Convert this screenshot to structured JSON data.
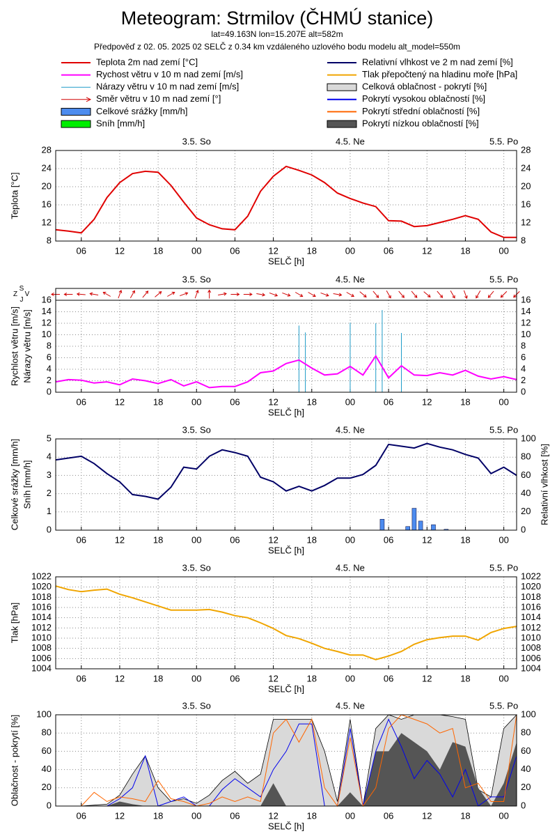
{
  "title": "Meteogram: Strmilov (ČHMÚ stanice)",
  "subtitle": "lat=49.163N lon=15.207E alt=582m",
  "forecast_info": "Předpověď z 02. 05. 2025 02 SELČ z 0.34 km vzdáleného uzlového bodu modelu alt_model=550m",
  "chart_data": [
    {
      "type": "line",
      "ylabel": "Teplota [°C]",
      "xlabel": "SELČ [h]",
      "x": [
        2,
        4,
        6,
        8,
        10,
        12,
        14,
        16,
        18,
        20,
        22,
        24,
        26,
        28,
        30,
        32,
        34,
        36,
        38,
        40,
        42,
        44,
        46,
        48,
        50,
        52,
        54,
        56,
        58,
        60,
        62,
        64,
        66,
        68,
        70,
        72,
        74
      ],
      "xlim": [
        2,
        74
      ],
      "xticks": [
        {
          "value": 6,
          "label": "06"
        },
        {
          "value": 12,
          "label": "12"
        },
        {
          "value": 18,
          "label": "18"
        },
        {
          "value": 24,
          "label": "00"
        },
        {
          "value": 30,
          "label": "06"
        },
        {
          "value": 36,
          "label": "12"
        },
        {
          "value": 42,
          "label": "18"
        },
        {
          "value": 48,
          "label": "00"
        },
        {
          "value": 54,
          "label": "06"
        },
        {
          "value": 60,
          "label": "12"
        },
        {
          "value": 66,
          "label": "18"
        },
        {
          "value": 72,
          "label": "00"
        }
      ],
      "top_ticks": [
        {
          "value": 24,
          "label": "3.5. So"
        },
        {
          "value": 48,
          "label": "4.5. Ne"
        },
        {
          "value": 72,
          "label": "5.5. Po"
        }
      ],
      "ylim": [
        8,
        28
      ],
      "yticks": [
        8,
        12,
        16,
        20,
        24,
        28
      ],
      "mirror_yticks": true,
      "grid": true,
      "series": [
        {
          "name": "Teplota 2m nad zemí [°C]",
          "type": "line",
          "color": "#e00000",
          "values": [
            10.5,
            10.2,
            9.8,
            12.8,
            17.6,
            20.9,
            22.9,
            23.4,
            23.2,
            20.3,
            16.6,
            13.1,
            11.6,
            10.7,
            10.5,
            13.5,
            19.0,
            22.3,
            24.5,
            23.6,
            22.6,
            20.9,
            18.6,
            17.4,
            16.4,
            15.6,
            12.5,
            12.4,
            11.2,
            11.4,
            12.1,
            12.8,
            13.6,
            12.8,
            10.0,
            8.8,
            8.8
          ]
        }
      ]
    },
    {
      "type": "line",
      "ylabel": [
        "Rychlost větru [m/s]",
        "Nárazy větru [m/s]"
      ],
      "xlabel": "SELČ [h]",
      "compass": {
        "n": "S",
        "w": "Z",
        "s": "J",
        "e": "V"
      },
      "x": [
        2,
        4,
        6,
        8,
        10,
        12,
        14,
        16,
        18,
        20,
        22,
        24,
        26,
        28,
        30,
        32,
        34,
        36,
        38,
        40,
        42,
        44,
        46,
        48,
        50,
        52,
        54,
        56,
        58,
        60,
        62,
        64,
        66,
        68,
        70,
        72,
        74
      ],
      "xlim": [
        2,
        74
      ],
      "xticks": [
        {
          "value": 6,
          "label": "06"
        },
        {
          "value": 12,
          "label": "12"
        },
        {
          "value": 18,
          "label": "18"
        },
        {
          "value": 24,
          "label": "00"
        },
        {
          "value": 30,
          "label": "06"
        },
        {
          "value": 36,
          "label": "12"
        },
        {
          "value": 42,
          "label": "18"
        },
        {
          "value": 48,
          "label": "00"
        },
        {
          "value": 54,
          "label": "06"
        },
        {
          "value": 60,
          "label": "12"
        },
        {
          "value": 66,
          "label": "18"
        },
        {
          "value": 72,
          "label": "00"
        }
      ],
      "top_ticks": [
        {
          "value": 24,
          "label": "3.5. So"
        },
        {
          "value": 48,
          "label": "4.5. Ne"
        },
        {
          "value": 72,
          "label": "5.5. Po"
        }
      ],
      "ylim": [
        0,
        16
      ],
      "yticks": [
        0,
        2,
        4,
        6,
        8,
        10,
        12,
        14,
        16
      ],
      "mirror_yticks": true,
      "grid": true,
      "series": [
        {
          "name": "Rychost větru v 10 m nad zemí [m/s]",
          "type": "line",
          "color": "#ff00ff",
          "values": [
            1.8,
            2.2,
            2.1,
            1.6,
            1.8,
            1.3,
            2.3,
            2.0,
            1.5,
            2.2,
            1.1,
            1.8,
            0.8,
            1.0,
            1.0,
            1.8,
            3.4,
            3.7,
            5.0,
            5.6,
            4.2,
            3.0,
            3.2,
            4.5,
            3.0,
            6.3,
            2.5,
            4.6,
            3.0,
            2.9,
            3.4,
            3.0,
            3.8,
            2.8,
            2.3,
            2.7,
            2.2
          ]
        },
        {
          "name": "Nárazy větru v 10 m nad zemí [m/s]",
          "type": "impulse",
          "color": "#1e9bc8",
          "x": [
            40,
            41,
            48,
            52,
            53,
            56
          ],
          "values": [
            11.6,
            10.4,
            12.1,
            12.0,
            14.3,
            10.3
          ]
        },
        {
          "name": "Směr větru v 10 m nad zemí [°]",
          "type": "arrow",
          "color": "#d00000",
          "values": [
            90,
            90,
            95,
            100,
            120,
            200,
            210,
            220,
            230,
            240,
            250,
            200,
            180,
            260,
            270,
            270,
            280,
            290,
            290,
            300,
            300,
            290,
            280,
            300,
            310,
            320,
            330,
            320,
            320,
            310,
            320,
            330,
            340,
            30,
            40,
            45,
            45
          ]
        }
      ]
    },
    {
      "type": "bar",
      "ylabel": [
        "Celkové srážky [mm/h]",
        "Sníh [mm/h]"
      ],
      "y2label": "Relativní vlhkost [%]",
      "xlabel": "SELČ [h]",
      "x": [
        2,
        4,
        6,
        8,
        10,
        12,
        14,
        16,
        18,
        20,
        22,
        24,
        26,
        28,
        30,
        32,
        34,
        36,
        38,
        40,
        42,
        44,
        46,
        48,
        50,
        52,
        54,
        56,
        58,
        60,
        62,
        64,
        66,
        68,
        70,
        72,
        74
      ],
      "xlim": [
        2,
        74
      ],
      "xticks": [
        {
          "value": 6,
          "label": "06"
        },
        {
          "value": 12,
          "label": "12"
        },
        {
          "value": 18,
          "label": "18"
        },
        {
          "value": 24,
          "label": "00"
        },
        {
          "value": 30,
          "label": "06"
        },
        {
          "value": 36,
          "label": "12"
        },
        {
          "value": 42,
          "label": "18"
        },
        {
          "value": 48,
          "label": "00"
        },
        {
          "value": 54,
          "label": "06"
        },
        {
          "value": 60,
          "label": "12"
        },
        {
          "value": 66,
          "label": "18"
        },
        {
          "value": 72,
          "label": "00"
        }
      ],
      "top_ticks": [
        {
          "value": 24,
          "label": "3.5. So"
        },
        {
          "value": 48,
          "label": "4.5. Ne"
        },
        {
          "value": 72,
          "label": "5.5. Po"
        }
      ],
      "ylim": [
        0,
        5
      ],
      "yticks": [
        0,
        1,
        2,
        3,
        4,
        5
      ],
      "y2lim": [
        0,
        100
      ],
      "y2ticks": [
        0,
        20,
        40,
        60,
        80,
        100
      ],
      "grid": true,
      "series": [
        {
          "name": "Celkové srážky [mm/h]",
          "type": "bar",
          "color": "#4d8cef",
          "x": [
            53,
            57,
            58,
            59,
            61,
            63
          ],
          "values": [
            0.6,
            0.2,
            1.2,
            0.5,
            0.3,
            0.05
          ]
        },
        {
          "name": "Sníh [mm/h]",
          "type": "bar",
          "color": "#00ee00",
          "x": [
            53,
            57,
            58,
            59,
            61,
            63
          ],
          "values": [
            0,
            0,
            0,
            0,
            0,
            0
          ]
        },
        {
          "name": "Relativní vlhkost ve 2 m nad zemí [%]",
          "type": "line",
          "color": "#000066",
          "axis": "y2",
          "values": [
            77,
            79,
            81,
            73,
            62,
            53,
            39,
            37,
            34,
            47,
            69,
            67,
            81,
            88,
            85,
            81,
            58,
            53,
            43,
            48,
            43,
            49,
            57,
            57,
            61,
            71,
            94,
            92,
            90,
            95,
            91,
            88,
            83,
            79,
            62,
            69,
            60
          ]
        }
      ]
    },
    {
      "type": "line",
      "ylabel": "Tlak [hPa]",
      "xlabel": "SELČ [h]",
      "x": [
        2,
        4,
        6,
        8,
        10,
        12,
        14,
        16,
        18,
        20,
        22,
        24,
        26,
        28,
        30,
        32,
        34,
        36,
        38,
        40,
        42,
        44,
        46,
        48,
        50,
        52,
        54,
        56,
        58,
        60,
        62,
        64,
        66,
        68,
        70,
        72,
        74
      ],
      "xlim": [
        2,
        74
      ],
      "xticks": [
        {
          "value": 6,
          "label": "06"
        },
        {
          "value": 12,
          "label": "12"
        },
        {
          "value": 18,
          "label": "18"
        },
        {
          "value": 24,
          "label": "00"
        },
        {
          "value": 30,
          "label": "06"
        },
        {
          "value": 36,
          "label": "12"
        },
        {
          "value": 42,
          "label": "18"
        },
        {
          "value": 48,
          "label": "00"
        },
        {
          "value": 54,
          "label": "06"
        },
        {
          "value": 60,
          "label": "12"
        },
        {
          "value": 66,
          "label": "18"
        },
        {
          "value": 72,
          "label": "00"
        }
      ],
      "top_ticks": [
        {
          "value": 24,
          "label": "3.5. So"
        },
        {
          "value": 48,
          "label": "4.5. Ne"
        },
        {
          "value": 72,
          "label": "5.5. Po"
        }
      ],
      "ylim": [
        1004,
        1022
      ],
      "yticks": [
        1004,
        1006,
        1008,
        1010,
        1012,
        1014,
        1016,
        1018,
        1020,
        1022
      ],
      "mirror_yticks": true,
      "grid": true,
      "series": [
        {
          "name": "Tlak přepočtený na hladinu moře [hPa]",
          "type": "line",
          "color": "#f0a500",
          "values": [
            1020.2,
            1019.5,
            1019.1,
            1019.4,
            1019.6,
            1018.6,
            1017.9,
            1017.1,
            1016.3,
            1015.5,
            1015.5,
            1015.5,
            1015.6,
            1015.1,
            1014.4,
            1014.0,
            1013.0,
            1011.9,
            1010.5,
            1009.9,
            1009.0,
            1008.0,
            1007.4,
            1006.7,
            1006.7,
            1005.8,
            1006.5,
            1007.4,
            1008.8,
            1009.7,
            1010.1,
            1010.4,
            1010.4,
            1009.6,
            1011.1,
            1011.9,
            1012.3
          ]
        }
      ]
    },
    {
      "type": "area",
      "ylabel": "Oblačnost - pokrytí [%]",
      "xlabel": "SELČ [h]",
      "x": [
        2,
        4,
        6,
        8,
        10,
        12,
        14,
        16,
        18,
        20,
        22,
        24,
        26,
        28,
        30,
        32,
        34,
        36,
        38,
        40,
        42,
        44,
        46,
        48,
        50,
        52,
        54,
        56,
        58,
        60,
        62,
        64,
        66,
        68,
        70,
        72,
        74
      ],
      "xlim": [
        2,
        74
      ],
      "xticks": [
        {
          "value": 6,
          "label": "06"
        },
        {
          "value": 12,
          "label": "12"
        },
        {
          "value": 18,
          "label": "18"
        },
        {
          "value": 24,
          "label": "00"
        },
        {
          "value": 30,
          "label": "06"
        },
        {
          "value": 36,
          "label": "12"
        },
        {
          "value": 42,
          "label": "18"
        },
        {
          "value": 48,
          "label": "00"
        },
        {
          "value": 54,
          "label": "06"
        },
        {
          "value": 60,
          "label": "12"
        },
        {
          "value": 66,
          "label": "18"
        },
        {
          "value": 72,
          "label": "00"
        }
      ],
      "top_ticks": [
        {
          "value": 24,
          "label": "3.5. So"
        },
        {
          "value": 48,
          "label": "4.5. Ne"
        },
        {
          "value": 72,
          "label": "5.5. Po"
        }
      ],
      "ylim": [
        0,
        100
      ],
      "yticks": [
        0,
        20,
        40,
        60,
        80,
        100
      ],
      "mirror_yticks": true,
      "grid": true,
      "series": [
        {
          "name": "Celková oblačnost - pokrytí [%]",
          "type": "area",
          "color": "#d9d9d9",
          "values": [
            0,
            0,
            0,
            1,
            2,
            12,
            35,
            55,
            20,
            5,
            8,
            3,
            12,
            28,
            38,
            25,
            35,
            95,
            95,
            95,
            95,
            60,
            5,
            95,
            0,
            85,
            100,
            95,
            100,
            100,
            100,
            98,
            95,
            18,
            10,
            85,
            100
          ]
        },
        {
          "name": "Pokrytí vysokou oblačností [%]",
          "type": "line",
          "color": "#0000ee",
          "values": [
            0,
            0,
            0,
            0,
            0,
            8,
            20,
            55,
            0,
            5,
            10,
            0,
            0,
            18,
            30,
            20,
            10,
            40,
            60,
            90,
            90,
            0,
            0,
            85,
            0,
            60,
            95,
            65,
            30,
            50,
            35,
            10,
            40,
            0,
            10,
            10,
            55
          ]
        },
        {
          "name": "Pokrytí střední oblačností [%]",
          "type": "line",
          "color": "#ff6600",
          "values": [
            0,
            0,
            0,
            15,
            5,
            10,
            8,
            5,
            28,
            8,
            5,
            0,
            3,
            10,
            5,
            10,
            5,
            80,
            95,
            70,
            95,
            20,
            0,
            75,
            0,
            20,
            85,
            100,
            95,
            90,
            80,
            85,
            20,
            25,
            5,
            5,
            100
          ]
        },
        {
          "name": "Pokrytí nízkou oblačností [%]",
          "type": "area",
          "color": "#555555",
          "values": [
            0,
            0,
            0,
            0,
            0,
            5,
            2,
            0,
            0,
            0,
            0,
            0,
            0,
            0,
            0,
            0,
            0,
            25,
            0,
            0,
            0,
            0,
            0,
            15,
            0,
            60,
            60,
            80,
            70,
            60,
            40,
            70,
            65,
            20,
            0,
            25,
            70
          ]
        }
      ]
    }
  ]
}
